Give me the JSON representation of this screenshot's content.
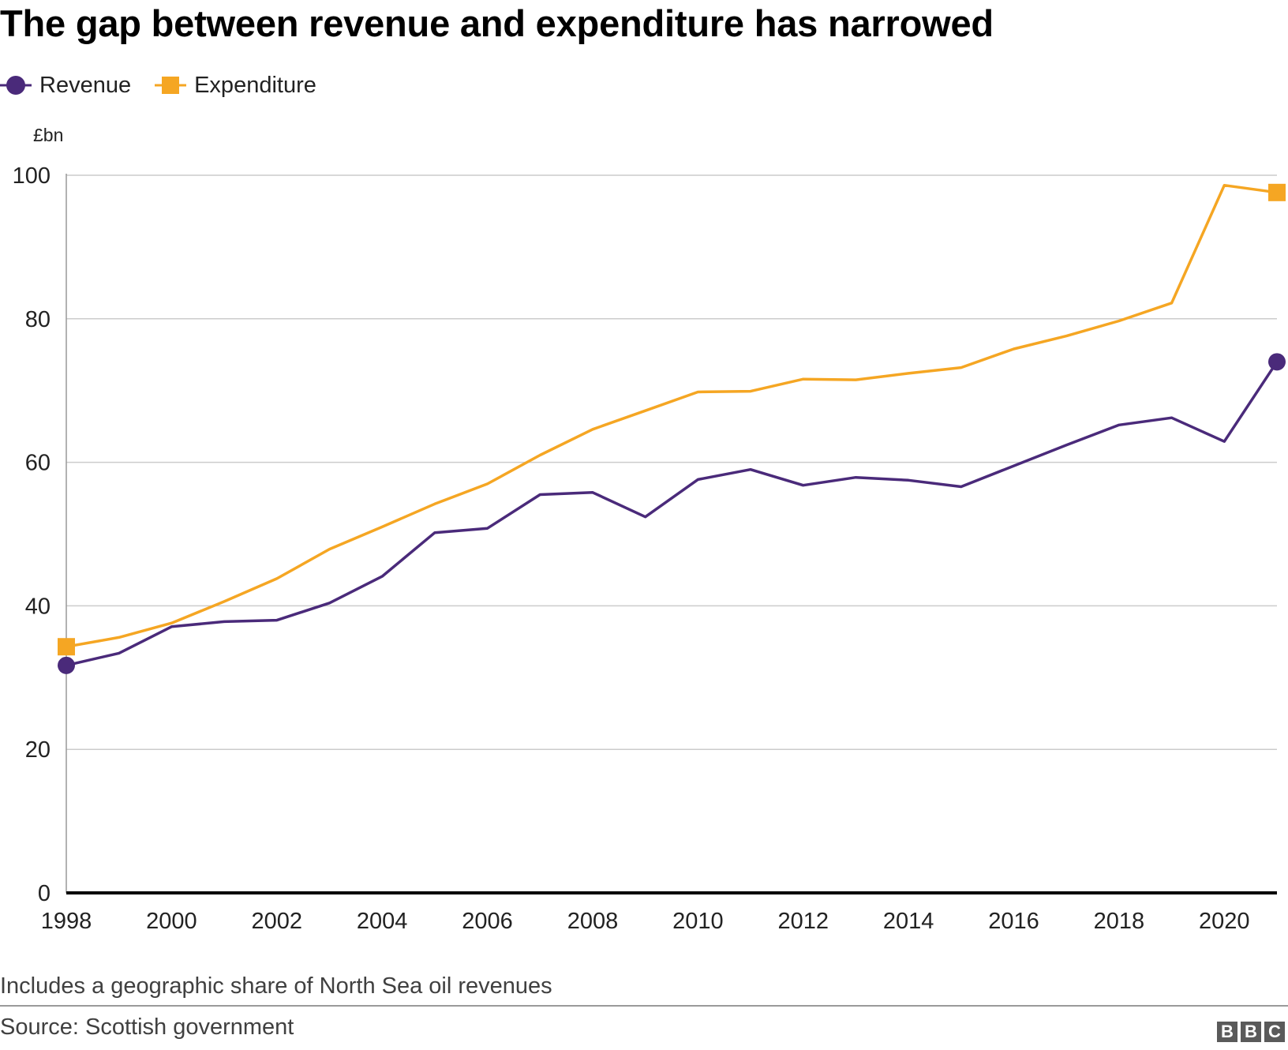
{
  "title": "The gap between revenue and expenditure has narrowed",
  "footer": {
    "note": "Includes a geographic share of North Sea oil revenues",
    "source": "Source: Scottish government",
    "logo_letters": [
      "B",
      "B",
      "C"
    ]
  },
  "chart_data": {
    "type": "line",
    "title": "The gap between revenue and expenditure has narrowed",
    "xlabel": "",
    "ylabel": "£bn",
    "ylim": [
      0,
      100
    ],
    "xlim": [
      1998,
      2021
    ],
    "yticks": [
      0,
      20,
      40,
      60,
      80,
      100
    ],
    "xticks": [
      1998,
      2000,
      2002,
      2004,
      2006,
      2008,
      2010,
      2012,
      2014,
      2016,
      2018,
      2020
    ],
    "grid": true,
    "legend_position": "top-left",
    "x": [
      1998,
      1999,
      2000,
      2001,
      2002,
      2003,
      2004,
      2005,
      2006,
      2007,
      2008,
      2009,
      2010,
      2011,
      2012,
      2013,
      2014,
      2015,
      2016,
      2017,
      2018,
      2019,
      2020,
      2021
    ],
    "series": [
      {
        "name": "Revenue",
        "color": "#4a2a7a",
        "marker": "circle",
        "values": [
          31.7,
          33.4,
          37.1,
          37.8,
          38.0,
          40.4,
          44.1,
          50.2,
          50.8,
          55.5,
          55.8,
          52.4,
          57.6,
          59.0,
          56.8,
          57.9,
          57.5,
          56.6,
          59.5,
          62.4,
          65.2,
          66.2,
          62.9,
          74.0
        ]
      },
      {
        "name": "Expenditure",
        "color": "#f5a623",
        "marker": "square",
        "values": [
          34.3,
          35.6,
          37.6,
          40.6,
          43.8,
          47.9,
          51.0,
          54.2,
          57.0,
          61.0,
          64.6,
          67.2,
          69.8,
          69.9,
          71.6,
          71.5,
          72.4,
          73.2,
          75.8,
          77.6,
          79.7,
          82.2,
          98.6,
          97.6
        ]
      }
    ]
  }
}
